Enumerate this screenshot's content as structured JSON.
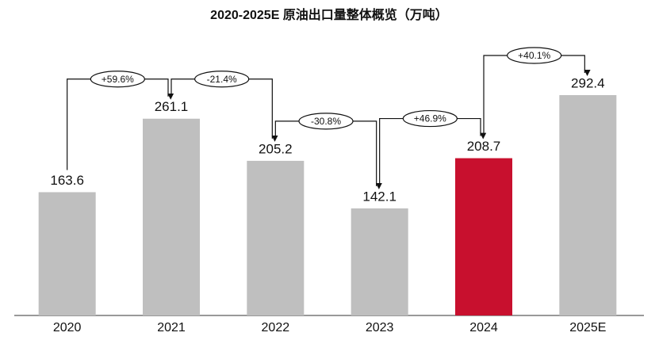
{
  "chart_data": {
    "type": "bar",
    "title": "2020-2025E 原油出口量整体概览（万吨）",
    "categories": [
      "2020",
      "2021",
      "2022",
      "2023",
      "2024",
      "2025E"
    ],
    "values": [
      163.6,
      261.1,
      205.2,
      142.1,
      208.7,
      292.4
    ],
    "colors": [
      "#bfbfbf",
      "#bfbfbf",
      "#bfbfbf",
      "#bfbfbf",
      "#c8102e",
      "#bfbfbf"
    ],
    "annotations": [
      "+59.6%",
      "-21.4%",
      "-30.8%",
      "+46.9%",
      "+40.1%"
    ]
  }
}
